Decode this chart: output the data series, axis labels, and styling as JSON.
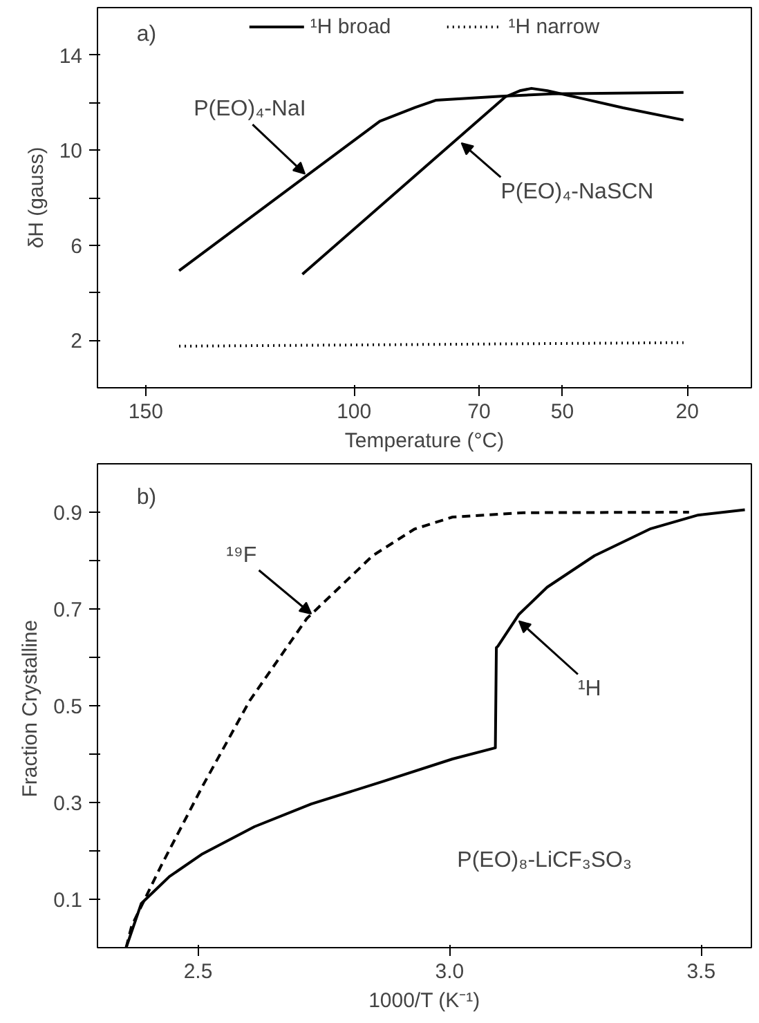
{
  "chart_data": [
    {
      "type": "line",
      "xlabel": "Temperature (°C)",
      "ylabel": "δH (gauss)",
      "xlim": [
        161.6,
        4.6
      ],
      "ylim": [
        0,
        16
      ],
      "xticks": [
        150,
        100,
        70,
        50,
        20
      ],
      "yticks": [
        2,
        {
          "value": 4,
          "label": null
        },
        6,
        {
          "value": 8,
          "label": null
        },
        10,
        {
          "value": 12,
          "label": null
        },
        14
      ],
      "legend": "top",
      "grid": false,
      "series": [
        {
          "name": "¹H broad",
          "color": "#000000",
          "line_style": "solid",
          "x": [
            142,
            93.8,
            85.3,
            80.4,
            64.7,
            52.4,
            20.9
          ],
          "values": [
            4.93,
            11.22,
            11.8,
            12.1,
            12.27,
            12.37,
            12.43
          ]
        },
        {
          "name": null,
          "color": "#000000",
          "line_style": "solid",
          "x": [
            112.4,
            63.7,
            60.2,
            57.4,
            53.6,
            44.6,
            35.4,
            20.9
          ],
          "values": [
            4.78,
            12.24,
            12.5,
            12.6,
            12.5,
            12.15,
            11.78,
            11.27
          ]
        },
        {
          "name": "¹H narrow",
          "color": "#000000",
          "line_style": "dotted",
          "x": [
            142,
            20.9
          ],
          "values": [
            1.75,
            1.9
          ]
        }
      ],
      "annotations": [
        "a)",
        {
          "text": "P(EO)₄-NaI",
          "x": 111.8,
          "y": 9.0
        },
        {
          "text": "P(EO)₄-NaSCN",
          "x": 74.2,
          "y": 10.3
        }
      ]
    },
    {
      "type": "line",
      "xlabel": "1000/T (K⁻¹)",
      "ylabel": "Fraction  Crystalline",
      "xlim": [
        2.3,
        3.6
      ],
      "ylim": [
        0,
        1.0
      ],
      "xticks": [
        2.5,
        {
          "value": 3.0,
          "label": "3.0"
        },
        3.5
      ],
      "yticks": [
        0.1,
        {
          "value": 0.2,
          "label": null
        },
        0.3,
        {
          "value": 0.4,
          "label": null
        },
        0.5,
        {
          "value": 0.6,
          "label": null
        },
        0.7,
        {
          "value": 0.8,
          "label": null
        },
        0.9
      ],
      "grid": false,
      "series": [
        {
          "name": null,
          "color": "#000000",
          "line_style": "dashed",
          "x": [
            2.357,
            2.368,
            2.425,
            2.509,
            2.603,
            2.716,
            2.847,
            2.93,
            3.006,
            3.147,
            3.476
          ],
          "values": [
            0.0,
            0.045,
            0.166,
            0.334,
            0.511,
            0.68,
            0.81,
            0.865,
            0.89,
            0.899,
            0.9
          ]
        },
        {
          "name": null,
          "color": "#000000",
          "line_style": "solid",
          "x": [
            2.357,
            2.387,
            2.443,
            2.509,
            2.612,
            2.725,
            2.866,
            3.006,
            3.091,
            3.093,
            3.096,
            3.138,
            3.194,
            3.288,
            3.4,
            3.494,
            3.587
          ],
          "values": [
            0.0,
            0.091,
            0.147,
            0.194,
            0.25,
            0.297,
            0.343,
            0.39,
            0.413,
            0.62,
            0.623,
            0.689,
            0.745,
            0.81,
            0.866,
            0.894,
            0.905
          ]
        }
      ],
      "annotations": [
        "b)",
        {
          "text": "¹⁹F",
          "x": 2.725,
          "y": 0.69
        },
        {
          "text": "¹H",
          "x": 3.138,
          "y": 0.675
        },
        "P(EO)₈-LiCF₃SO₃"
      ]
    }
  ]
}
